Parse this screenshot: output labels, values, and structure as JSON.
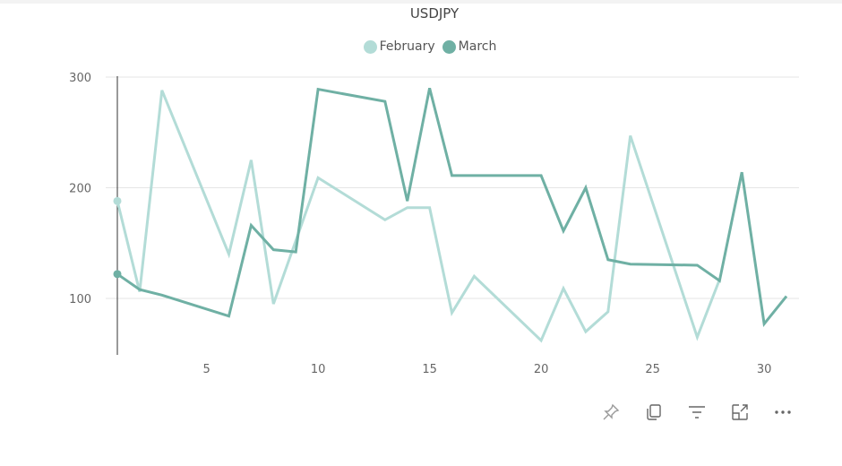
{
  "chart_data": {
    "type": "line",
    "title": "USDJPY",
    "xlabel": "",
    "ylabel": "",
    "xlim": [
      1,
      31
    ],
    "ylim": [
      50,
      300
    ],
    "x_ticks": [
      5,
      10,
      15,
      20,
      25,
      30
    ],
    "y_ticks": [
      100,
      200,
      300
    ],
    "grid": true,
    "legend_position": "top",
    "series": [
      {
        "name": "February",
        "color": "#b3dcd7",
        "points": [
          [
            1,
            188
          ],
          [
            2,
            106
          ],
          [
            3,
            288
          ],
          [
            6,
            140
          ],
          [
            7,
            225
          ],
          [
            8,
            95
          ],
          [
            10,
            209
          ],
          [
            13,
            171
          ],
          [
            14,
            182
          ],
          [
            15,
            182
          ],
          [
            16,
            87
          ],
          [
            17,
            120
          ],
          [
            20,
            62
          ],
          [
            21,
            109
          ],
          [
            22,
            70
          ],
          [
            23,
            88
          ],
          [
            24,
            247
          ],
          [
            27,
            65
          ],
          [
            28,
            117
          ]
        ]
      },
      {
        "name": "March",
        "color": "#6fb0a4",
        "points": [
          [
            1,
            122
          ],
          [
            2,
            108
          ],
          [
            3,
            103
          ],
          [
            6,
            84
          ],
          [
            7,
            166
          ],
          [
            8,
            144
          ],
          [
            9,
            142
          ],
          [
            10,
            289
          ],
          [
            13,
            278
          ],
          [
            14,
            188
          ],
          [
            15,
            290
          ],
          [
            16,
            211
          ],
          [
            20,
            211
          ],
          [
            21,
            161
          ],
          [
            22,
            200
          ],
          [
            23,
            135
          ],
          [
            24,
            131
          ],
          [
            27,
            130
          ],
          [
            28,
            116
          ],
          [
            29,
            214
          ],
          [
            30,
            77
          ],
          [
            31,
            102
          ]
        ]
      }
    ]
  },
  "legend": {
    "items": [
      {
        "label": "February",
        "color": "#b3dcd7"
      },
      {
        "label": "March",
        "color": "#6fb0a4"
      }
    ]
  },
  "toolbar": {
    "icons": [
      "pin-icon",
      "copy-icon",
      "filter-icon",
      "focus-mode-icon",
      "more-options-icon"
    ]
  }
}
